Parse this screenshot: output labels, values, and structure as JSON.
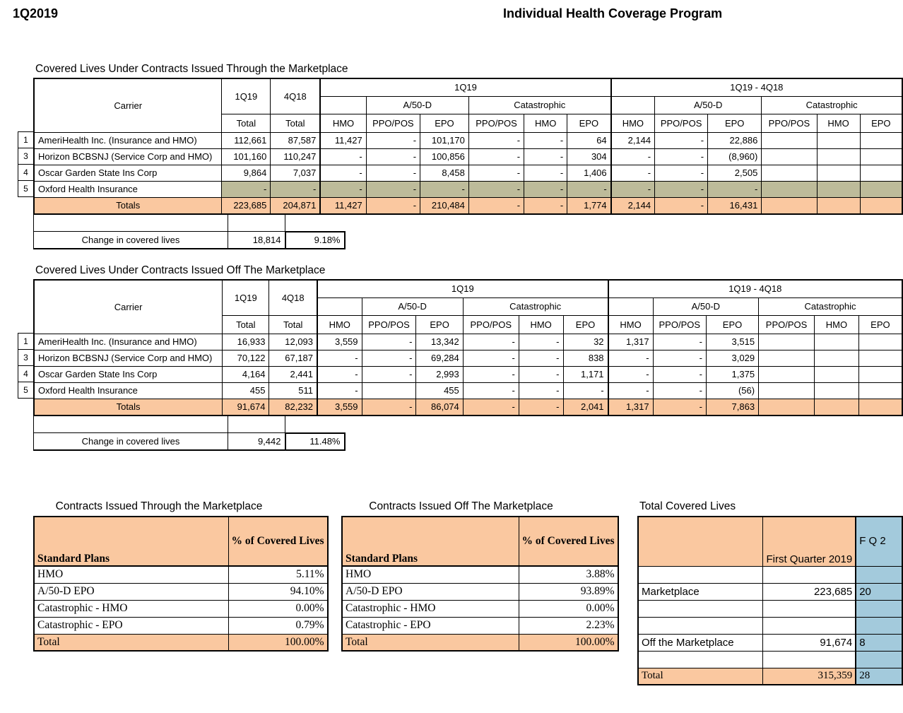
{
  "page": {
    "quarter_label": "1Q2019",
    "title": "Individual Health Coverage Program"
  },
  "colors": {
    "orange": "#FAC8A0",
    "olive": "#BDBB9A",
    "blue": "#A3CADC",
    "border": "#000000"
  },
  "main_tables": [
    {
      "title": "Covered Lives Under Contracts Issued Through the Marketplace",
      "header": {
        "carrier": "Carrier",
        "q1": "1Q19",
        "q4": "4Q18",
        "total": "Total",
        "group_current": "1Q19",
        "group_delta": "1Q19 - 4Q18",
        "sub_a50d": "A/50-D",
        "sub_cat": "Catastrophic",
        "plans": [
          "HMO",
          "PPO/POS",
          "EPO",
          "PPO/POS",
          "HMO",
          "EPO"
        ]
      },
      "rows": [
        {
          "num": "1",
          "carrier": "AmeriHealth  Inc. (Insurance and HMO)",
          "shaded": false,
          "values": [
            "112,661",
            "87,587",
            "11,427",
            "-",
            "101,170",
            "-",
            "-",
            "64",
            "2,144",
            "-",
            "22,886",
            "",
            "",
            ""
          ]
        },
        {
          "num": "3",
          "carrier": "Horizon BCBSNJ (Service Corp and HMO)",
          "shaded": false,
          "values": [
            "101,160",
            "110,247",
            "-",
            "-",
            "100,856",
            "-",
            "-",
            "304",
            "-",
            "-",
            "(8,960)",
            "",
            "",
            ""
          ]
        },
        {
          "num": "4",
          "carrier": "Oscar Garden State Ins Corp",
          "shaded": false,
          "values": [
            "9,864",
            "7,037",
            "-",
            "-",
            "8,458",
            "-",
            "-",
            "1,406",
            "-",
            "-",
            "2,505",
            "",
            "",
            ""
          ]
        },
        {
          "num": "5",
          "carrier": "Oxford Health Insurance",
          "shaded": true,
          "values": [
            "-",
            "-",
            "-",
            "-",
            "-",
            "-",
            "-",
            "-",
            "-",
            "-",
            "-",
            "",
            "",
            ""
          ]
        }
      ],
      "totals": {
        "label": "Totals",
        "values": [
          "223,685",
          "204,871",
          "11,427",
          "-",
          "210,484",
          "-",
          "-",
          "1,774",
          "2,144",
          "-",
          "16,431",
          "",
          "",
          ""
        ]
      },
      "change": {
        "label": "Change in covered lives",
        "amount": "18,814",
        "percent": "9.18%"
      }
    },
    {
      "title": "Covered Lives Under Contracts Issued Off The Marketplace",
      "header": {
        "carrier": "Carrier",
        "q1": "1Q19",
        "q4": "4Q18",
        "total": "Total",
        "group_current": "1Q19",
        "group_delta": "1Q19 - 4Q18",
        "sub_a50d": "A/50-D",
        "sub_cat": "Catastrophic",
        "plans": [
          "HMO",
          "PPO/POS",
          "EPO",
          "PPO/POS",
          "HMO",
          "EPO"
        ]
      },
      "rows": [
        {
          "num": "1",
          "carrier": "AmeriHealth  Inc. (Insurance and HMO)",
          "shaded": false,
          "values": [
            "16,933",
            "12,093",
            "3,559",
            "-",
            "13,342",
            "-",
            "-",
            "32",
            "1,317",
            "-",
            "3,515",
            "",
            "",
            ""
          ]
        },
        {
          "num": "3",
          "carrier": "Horizon BCBSNJ (Service Corp and HMO)",
          "shaded": false,
          "values": [
            "70,122",
            "67,187",
            "-",
            "-",
            "69,284",
            "-",
            "-",
            "838",
            "-",
            "-",
            "3,029",
            "",
            "",
            ""
          ]
        },
        {
          "num": "4",
          "carrier": "Oscar Garden State Ins Corp",
          "shaded": false,
          "values": [
            "4,164",
            "2,441",
            "-",
            "-",
            "2,993",
            "-",
            "-",
            "1,171",
            "-",
            "-",
            "1,375",
            "",
            "",
            ""
          ]
        },
        {
          "num": "5",
          "carrier": "Oxford Health Insurance",
          "shaded": false,
          "values": [
            "455",
            "511",
            "-",
            "",
            "455",
            "-",
            "-",
            "-",
            "-",
            "-",
            "(56)",
            "",
            "",
            ""
          ]
        }
      ],
      "totals": {
        "label": "Totals",
        "values": [
          "91,674",
          "82,232",
          "3,559",
          "-",
          "86,074",
          "-",
          "-",
          "2,041",
          "1,317",
          "-",
          "7,863",
          "",
          "",
          ""
        ]
      },
      "change": {
        "label": "Change in covered lives",
        "amount": "9,442",
        "percent": "11.48%"
      }
    }
  ],
  "summary_tables": [
    {
      "title": "Contracts Issued Through the Marketplace",
      "header": {
        "col1": "Standard Plans",
        "col2": "% of\nCovered\nLives"
      },
      "rows": [
        [
          "HMO",
          "5.11%"
        ],
        [
          "A/50-D EPO",
          "94.10%"
        ],
        [
          "Catastrophic  - HMO",
          "0.00%"
        ],
        [
          "Catastrophic  - EPO",
          "0.79%"
        ]
      ],
      "total": [
        "Total",
        "100.00%"
      ]
    },
    {
      "title": "Contracts Issued Off The Marketplace",
      "header": {
        "col1": "Standard Plans",
        "col2": "% of\nCovered\nLives"
      },
      "rows": [
        [
          "HMO",
          "3.88%"
        ],
        [
          "A/50-D EPO",
          "93.89%"
        ],
        [
          "Catastrophic - HMO",
          "0.00%"
        ],
        [
          "Catastrophic - EPO",
          "2.23%"
        ]
      ],
      "total": [
        "Total",
        "100.00%"
      ]
    }
  ],
  "total_covered": {
    "title": "Total Covered Lives",
    "col_q1_header": "First Quarter\n2019",
    "col_q4_header_fragment": "F\nQ\n2",
    "rows": [
      {
        "label": "",
        "q1": "",
        "q4": "",
        "total": false
      },
      {
        "label": "Marketplace",
        "q1": "223,685",
        "q4": "20",
        "total": false
      },
      {
        "label": "",
        "q1": "",
        "q4": "",
        "total": false
      },
      {
        "label": "",
        "q1": "",
        "q4": "",
        "total": false
      },
      {
        "label": "Off the Marketplace",
        "q1": "91,674",
        "q4": "8",
        "total": false
      },
      {
        "label": "",
        "q1": "",
        "q4": "",
        "total": false
      },
      {
        "label": "Total",
        "q1": "315,359",
        "q4": "28",
        "total": true
      }
    ]
  }
}
